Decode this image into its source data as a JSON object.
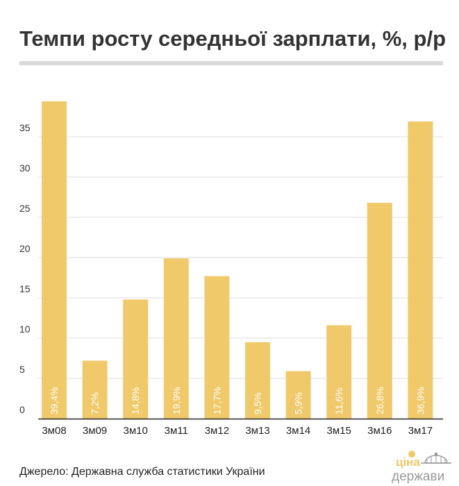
{
  "title": "Темпи росту середньої зарплати, %, р/р",
  "source": "Джерело: Державна служба статистики України",
  "logo": {
    "line1": "ціна",
    "line2": "держави"
  },
  "colors": {
    "bar": "#f0c96a",
    "grid": "#dcdcdc",
    "axis": "#222222",
    "title_rule": "#d9d9d9"
  },
  "chart_data": {
    "type": "bar",
    "categories": [
      "3м08",
      "3м09",
      "3м10",
      "3м11",
      "3м12",
      "3м13",
      "3м14",
      "3м15",
      "3м16",
      "3м17"
    ],
    "values": [
      39.4,
      7.2,
      14.8,
      19.9,
      17.7,
      9.5,
      5.9,
      11.6,
      26.8,
      36.9
    ],
    "data_labels": [
      "39,4%",
      "7,2%",
      "14,8%",
      "19,9%",
      "17,7%",
      "9,5%",
      "5,9%",
      "11,6%",
      "26,8%",
      "36,9%"
    ],
    "yticks": [
      0,
      5,
      10,
      15,
      20,
      25,
      30,
      35
    ],
    "ylim": [
      0,
      40
    ],
    "grid": true,
    "title": "Темпи росту середньої зарплати, %, р/р",
    "xlabel": "",
    "ylabel": ""
  }
}
